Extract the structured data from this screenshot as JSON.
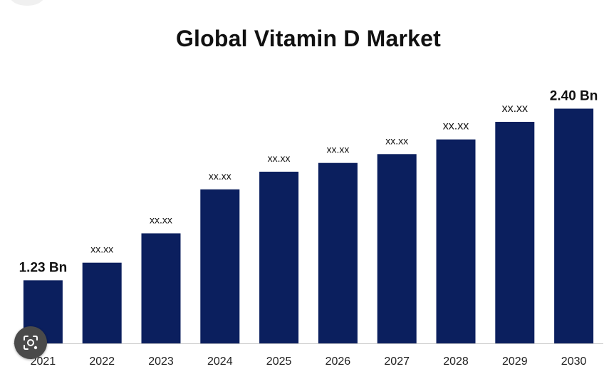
{
  "chart_data": {
    "type": "bar",
    "title": "Global Vitamin D Market",
    "xlabel": "",
    "ylabel": "",
    "categories": [
      "2021",
      "2022",
      "2023",
      "2024",
      "2025",
      "2026",
      "2027",
      "2028",
      "2029",
      "2030"
    ],
    "values": [
      1.23,
      1.35,
      1.55,
      1.85,
      1.97,
      2.03,
      2.09,
      2.19,
      2.31,
      2.4
    ],
    "data_labels": [
      "1.23 Bn",
      "xx.xx",
      "xx.xx",
      "xx.xx",
      "xx.xx",
      "xx.xx",
      "xx.xx",
      "xx.xx",
      "xx.xx",
      "2.40 Bn"
    ],
    "ylim": [
      0.8,
      2.48
    ],
    "grid": false,
    "legend": "none",
    "bar_color": "#0b1f5e",
    "axis_color": "#c8c8c8",
    "text_color": "#111111"
  },
  "overlay": {
    "lens_icon": "camera-lens-icon"
  }
}
